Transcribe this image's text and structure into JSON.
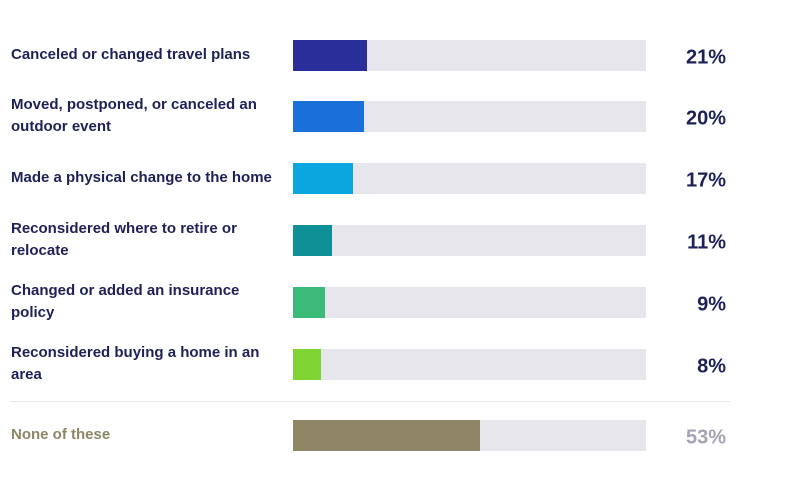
{
  "chart_data": {
    "type": "bar",
    "categories": [
      "Canceled or changed travel plans",
      "Moved, postponed, or canceled an outdoor event",
      "Made a physical change to the home",
      "Reconsidered where to retire or relocate",
      "Changed or added an insurance policy",
      "Reconsidered buying a home in an area",
      "None of these"
    ],
    "values": [
      21,
      20,
      17,
      11,
      9,
      8,
      53
    ],
    "value_labels": [
      "21%",
      "20%",
      "17%",
      "11%",
      "9%",
      "8%",
      "53%"
    ],
    "colors": [
      "#2a2e9b",
      "#1b6fd9",
      "#0aa6df",
      "#0f9097",
      "#3cba7a",
      "#7fd332",
      "#8f8665"
    ],
    "xlim": [
      0,
      100
    ]
  }
}
